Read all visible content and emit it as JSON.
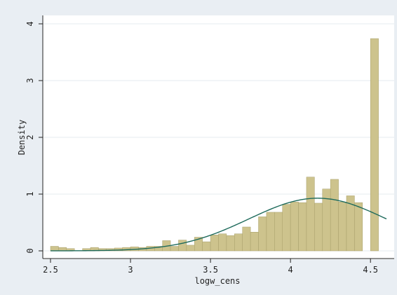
{
  "chart_data": {
    "type": "bar",
    "subtype": "histogram-with-normal-density",
    "title": "",
    "xlabel": "logw_cens",
    "ylabel": "Density",
    "xlim": [
      2.5,
      4.6
    ],
    "ylim": [
      0,
      4
    ],
    "xticks": [
      2.5,
      3,
      3.5,
      4,
      4.5
    ],
    "xtick_labels": [
      "2.5",
      "3",
      "3.5",
      "4",
      "4.5"
    ],
    "yticks": [
      0,
      1,
      2,
      3,
      4
    ],
    "ytick_labels": [
      "0",
      "1",
      "2",
      "3",
      "4"
    ],
    "grid": "horizontal",
    "bin_edges": [
      2.5,
      2.55,
      2.6,
      2.65,
      2.7,
      2.75,
      2.8,
      2.85,
      2.9,
      2.95,
      3.0,
      3.05,
      3.1,
      3.15,
      3.2,
      3.25,
      3.3,
      3.35,
      3.4,
      3.45,
      3.5,
      3.55,
      3.6,
      3.65,
      3.7,
      3.75,
      3.8,
      3.85,
      3.9,
      3.95,
      4.0,
      4.05,
      4.1,
      4.15,
      4.2,
      4.25,
      4.3,
      4.35,
      4.4,
      4.45,
      4.5,
      4.55,
      4.6
    ],
    "densities": [
      0.08,
      0.06,
      0.04,
      0.0,
      0.04,
      0.06,
      0.04,
      0.04,
      0.05,
      0.06,
      0.07,
      0.06,
      0.08,
      0.08,
      0.18,
      0.08,
      0.19,
      0.1,
      0.24,
      0.16,
      0.28,
      0.3,
      0.27,
      0.3,
      0.42,
      0.33,
      0.6,
      0.68,
      0.68,
      0.82,
      0.86,
      0.85,
      1.3,
      0.84,
      1.09,
      1.26,
      0.86,
      0.97,
      0.85,
      0.0,
      3.74,
      0.0
    ],
    "normal_curve": {
      "mean": 4.17,
      "sd": 0.43
    },
    "colors": {
      "bars": "#cdc38d",
      "bar_edge": "#a79f6a",
      "curve": "#1f6b5c",
      "plot_bg": "#ffffff",
      "outer_bg": "#e9eef3",
      "grid": "#e6ebef"
    }
  }
}
